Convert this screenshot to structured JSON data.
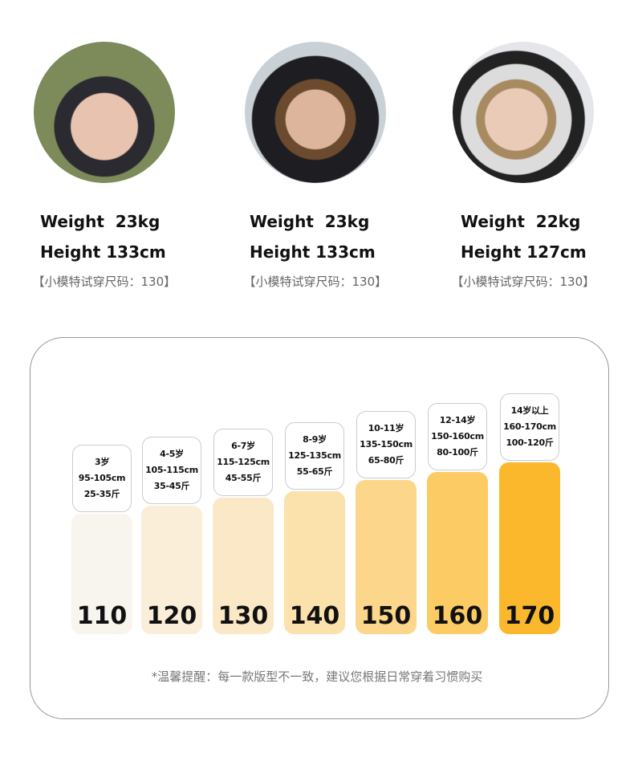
{
  "models": [
    {
      "weight": "Weight  23kg",
      "height": "Height 133cm",
      "note": "【小模特试穿尺码：130】"
    },
    {
      "weight": "Weight  23kg",
      "height": "Height 133cm",
      "note": "【小模特试穿尺码：130】"
    },
    {
      "weight": "Weight  22kg",
      "height": "Height 127cm",
      "note": "【小模特试穿尺码：130】"
    }
  ],
  "sizes": [
    {
      "size": "110",
      "age": "3岁",
      "height": "95-105cm",
      "weight": "25-35斤"
    },
    {
      "size": "120",
      "age": "4-5岁",
      "height": "105-115cm",
      "weight": "35-45斤"
    },
    {
      "size": "130",
      "age": "6-7岁",
      "height": "115-125cm",
      "weight": "45-55斤"
    },
    {
      "size": "140",
      "age": "8-9岁",
      "height": "125-135cm",
      "weight": "55-65斤"
    },
    {
      "size": "150",
      "age": "10-11岁",
      "height": "135-150cm",
      "weight": "65-80斤"
    },
    {
      "size": "160",
      "age": "12-14岁",
      "height": "150-160cm",
      "weight": "80-100斤"
    },
    {
      "size": "170",
      "age": "14岁以上",
      "height": "160-170cm",
      "weight": "100-120斤"
    }
  ],
  "footnote": "*温馨提醒：每一款版型不一致，建议您根据日常穿着习惯购买"
}
